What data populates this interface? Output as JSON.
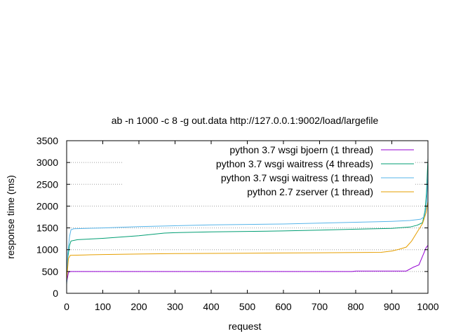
{
  "chart_data": {
    "type": "line",
    "title": "ab -n 1000 -c 8 -g out.data http://127.0.0.1:9002/load/largefile",
    "xlabel": "request",
    "ylabel": "response time (ms)",
    "xlim": [
      0,
      1000
    ],
    "ylim": [
      0,
      3500
    ],
    "xticks": [
      0,
      100,
      200,
      300,
      400,
      500,
      600,
      700,
      800,
      900,
      1000
    ],
    "yticks": [
      0,
      500,
      1000,
      1500,
      2000,
      2500,
      3000,
      3500
    ],
    "grid": true,
    "legend_position": "top-right",
    "series": [
      {
        "name": "python 3.7 wsgi bjoern (1 thread)",
        "color": "#9400d3",
        "points": [
          [
            0,
            250
          ],
          [
            5,
            480
          ],
          [
            10,
            500
          ],
          [
            100,
            500
          ],
          [
            300,
            500
          ],
          [
            500,
            500
          ],
          [
            700,
            500
          ],
          [
            790,
            500
          ],
          [
            800,
            510
          ],
          [
            900,
            510
          ],
          [
            940,
            510
          ],
          [
            960,
            600
          ],
          [
            975,
            650
          ],
          [
            985,
            850
          ],
          [
            990,
            950
          ],
          [
            995,
            1050
          ],
          [
            1000,
            1100
          ]
        ]
      },
      {
        "name": "python 3.7 wsgi waitress (4 threads)",
        "color": "#009e73",
        "points": [
          [
            0,
            200
          ],
          [
            3,
            800
          ],
          [
            8,
            1100
          ],
          [
            12,
            1200
          ],
          [
            30,
            1230
          ],
          [
            100,
            1260
          ],
          [
            200,
            1320
          ],
          [
            270,
            1380
          ],
          [
            300,
            1390
          ],
          [
            400,
            1410
          ],
          [
            500,
            1420
          ],
          [
            600,
            1430
          ],
          [
            700,
            1450
          ],
          [
            800,
            1470
          ],
          [
            900,
            1490
          ],
          [
            950,
            1520
          ],
          [
            970,
            1560
          ],
          [
            985,
            1620
          ],
          [
            992,
            1900
          ],
          [
            996,
            2300
          ],
          [
            1000,
            3100
          ]
        ]
      },
      {
        "name": "python 3.7 wsgi waitress (1 thread)",
        "color": "#56b4e9",
        "points": [
          [
            0,
            200
          ],
          [
            3,
            900
          ],
          [
            8,
            1300
          ],
          [
            12,
            1460
          ],
          [
            20,
            1480
          ],
          [
            100,
            1500
          ],
          [
            200,
            1530
          ],
          [
            300,
            1550
          ],
          [
            400,
            1570
          ],
          [
            500,
            1580
          ],
          [
            600,
            1590
          ],
          [
            700,
            1610
          ],
          [
            800,
            1630
          ],
          [
            900,
            1650
          ],
          [
            950,
            1670
          ],
          [
            980,
            1700
          ],
          [
            990,
            1760
          ],
          [
            996,
            2000
          ],
          [
            1000,
            2800
          ]
        ]
      },
      {
        "name": "python 2.7 zserver (1 thread)",
        "color": "#e69f00",
        "points": [
          [
            0,
            300
          ],
          [
            5,
            800
          ],
          [
            10,
            870
          ],
          [
            50,
            880
          ],
          [
            100,
            890
          ],
          [
            200,
            900
          ],
          [
            300,
            910
          ],
          [
            400,
            915
          ],
          [
            500,
            920
          ],
          [
            600,
            925
          ],
          [
            700,
            930
          ],
          [
            800,
            935
          ],
          [
            870,
            940
          ],
          [
            900,
            970
          ],
          [
            920,
            1010
          ],
          [
            940,
            1060
          ],
          [
            955,
            1200
          ],
          [
            970,
            1400
          ],
          [
            985,
            1600
          ],
          [
            995,
            1850
          ],
          [
            1000,
            2100
          ]
        ]
      }
    ]
  }
}
